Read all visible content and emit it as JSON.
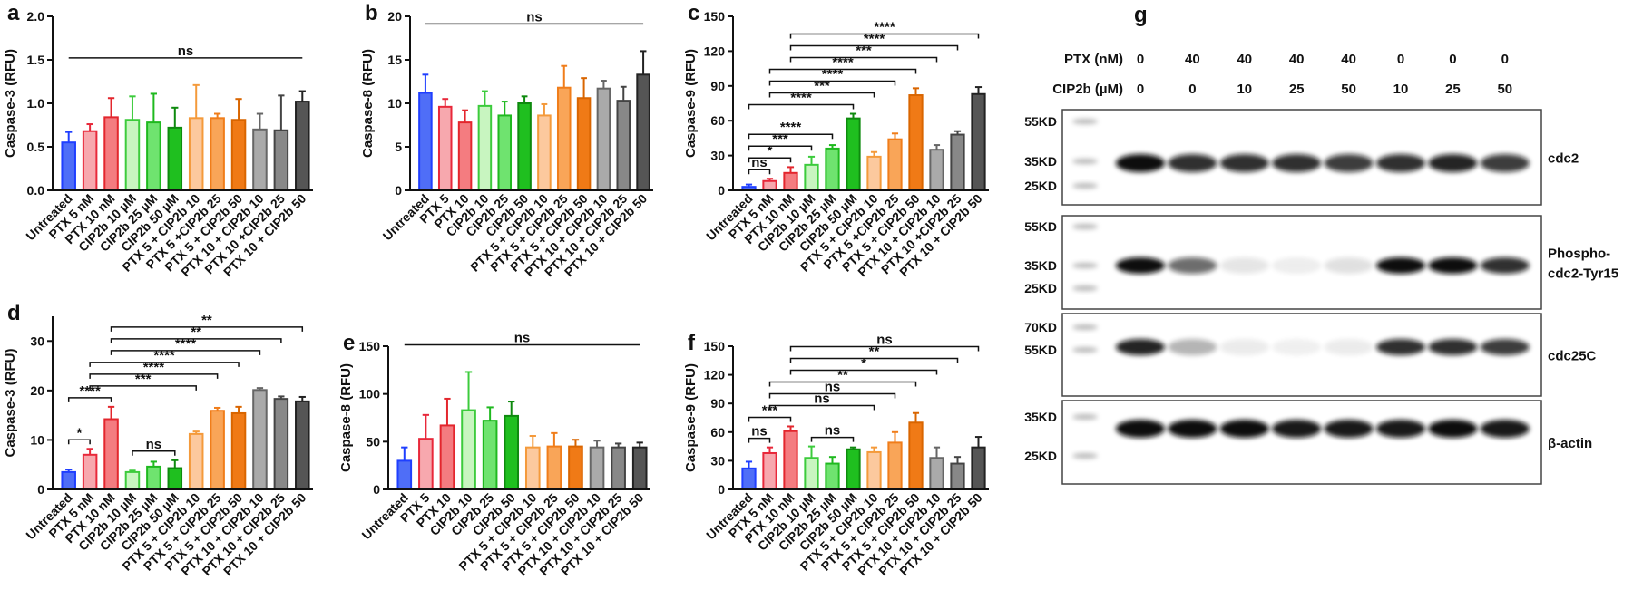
{
  "palette": {
    "fills": [
      "#4f6ef7",
      "#f7a8ae",
      "#f47c80",
      "#c8f5c0",
      "#6fe36f",
      "#1fbf1f",
      "#fcc99e",
      "#f9a558",
      "#f07a16",
      "#aaaaaa",
      "#888888",
      "#555555"
    ],
    "edges": [
      "#1f3fff",
      "#e8283a",
      "#e3262d",
      "#3ccb3c",
      "#1fb91f",
      "#0e8a0e",
      "#f49a3b",
      "#f07d1a",
      "#d96500",
      "#666666",
      "#444444",
      "#222222"
    ]
  },
  "chart_data": [
    {
      "type": "bar",
      "panel": "a",
      "y_label": "Caspase-3 (RFU)",
      "categories": [
        "Untreated",
        "PTX 5 nM",
        "PTX 10 nM",
        "CIP2b 10 µM",
        "CIP2b 25 µM",
        "CIP2b 50 µM",
        "PTX 5 + CIP2b 10",
        "PTX 5 +CIP2b 25",
        "PTX 5 + CIP2b 50",
        "PTX 10 + CIP2b 10",
        "PTX 10 +CIP2b 25",
        "PTX 10 + CIP2b 50"
      ],
      "values": [
        0.55,
        0.68,
        0.84,
        0.81,
        0.78,
        0.72,
        0.83,
        0.83,
        0.81,
        0.7,
        0.69,
        1.02
      ],
      "errors": [
        0.12,
        0.08,
        0.22,
        0.27,
        0.33,
        0.23,
        0.38,
        0.05,
        0.24,
        0.18,
        0.4,
        0.12
      ],
      "ylim": [
        0,
        2
      ],
      "yticks": [
        {
          "value": 0,
          "label": "0.0"
        },
        0.5,
        {
          "value": 1,
          "label": "1.0"
        },
        1.5,
        {
          "value": 2,
          "label": "2.0"
        }
      ],
      "annotations": [
        {
          "label": "ns",
          "pair": [
            0,
            11
          ]
        }
      ]
    },
    {
      "type": "bar",
      "panel": "b",
      "y_label": "Caspase-8 (RFU)",
      "categories": [
        "Untreated",
        "PTX 5",
        "PTX 10",
        "CIP2b 10",
        "CIP2b 25",
        "CIP2b 50",
        "PTX 5 + CIP2b 10",
        "PTX 5 + CIP2b 25",
        "PTX 5 + CIP2b 50",
        "PTX 10 + CIP2b 10",
        "PTX 10 + CIP2b 25",
        "PTX 10 + CIP2b 50"
      ],
      "values": [
        11.2,
        9.6,
        7.8,
        9.7,
        8.6,
        10.0,
        8.6,
        11.8,
        10.6,
        11.7,
        10.3,
        13.3
      ],
      "errors": [
        2.1,
        0.9,
        1.4,
        1.7,
        1.6,
        0.8,
        1.3,
        2.5,
        2.3,
        0.9,
        1.6,
        2.7
      ],
      "ylim": [
        0,
        20
      ],
      "yticks": [
        0,
        5,
        10,
        15,
        20
      ],
      "annotations": [
        {
          "label": "ns",
          "pair": [
            0,
            11
          ]
        }
      ]
    },
    {
      "type": "bar",
      "panel": "c",
      "y_label": "Caspase-9 (RFU)",
      "categories": [
        "Untreated",
        "PTX 5 nM",
        "PTX 10 nM",
        "CIP2b 10 µM",
        "CIP2b 25 µM",
        "CIP2b 50 µM",
        "PTX 5 + CIP2b 10",
        "PTX 5 +CIP2b 25",
        "PTX 5 + CIP2b 50",
        "PTX 10 + CIP2b 10",
        "PTX 10 +CIP2b 25",
        "PTX 10 + CIP2b 50"
      ],
      "values": [
        3,
        8,
        15,
        22,
        36,
        62,
        29,
        44,
        82,
        35,
        48,
        83
      ],
      "errors": [
        2,
        2,
        5,
        7,
        3,
        4,
        4,
        5,
        6,
        4,
        3,
        6
      ],
      "ylim": [
        0,
        150
      ],
      "yticks": [
        0,
        30,
        60,
        90,
        120,
        150
      ],
      "annotations": [
        {
          "label": "ns",
          "pair": [
            0,
            1
          ]
        },
        {
          "label": "*",
          "pair": [
            0,
            2
          ]
        },
        {
          "label": "***",
          "pair": [
            0,
            3
          ]
        },
        {
          "label": "****",
          "pair": [
            0,
            4
          ]
        },
        {
          "label": "****",
          "pair": [
            0,
            5
          ]
        },
        {
          "label": "***",
          "pair": [
            1,
            6
          ]
        },
        {
          "label": "****",
          "pair": [
            1,
            7
          ]
        },
        {
          "label": "****",
          "pair": [
            1,
            8
          ]
        },
        {
          "label": "***",
          "pair": [
            2,
            9
          ]
        },
        {
          "label": "****",
          "pair": [
            2,
            10
          ]
        },
        {
          "label": "****",
          "pair": [
            2,
            11
          ]
        }
      ]
    },
    {
      "type": "bar",
      "panel": "d",
      "y_label": "Caspase-3 (RFU)",
      "categories": [
        "Untreated",
        "PTX 5 nM",
        "PTX 10 nM",
        "CIP2b 10 µM",
        "CIP2b 25 µM",
        "CIP2b 50 µM",
        "PTX 5 + CIP2b 10",
        "PTX 5 + CIP2b 25",
        "PTX 5 + CIP2b 50",
        "PTX 10 + CIP2b 10",
        "PTX 10 + CIP2b 25",
        "PTX 10 + CIP2b 50"
      ],
      "values": [
        3.5,
        7.0,
        14.2,
        3.5,
        4.6,
        4.3,
        11.2,
        15.9,
        15.4,
        20.1,
        18.3,
        17.8
      ],
      "errors": [
        0.5,
        1.2,
        2.5,
        0.3,
        1.0,
        1.6,
        0.5,
        0.6,
        1.3,
        0.4,
        0.5,
        0.9
      ],
      "ylim": [
        0,
        35
      ],
      "yticks": [
        0,
        10,
        20,
        30
      ],
      "annotations": [
        {
          "label": "*",
          "pair": [
            0,
            1
          ]
        },
        {
          "label": "****",
          "pair": [
            0,
            2
          ]
        },
        {
          "label": "ns",
          "pair": [
            3,
            5
          ]
        },
        {
          "label": "***",
          "pair": [
            1,
            6
          ]
        },
        {
          "label": "****",
          "pair": [
            1,
            7
          ]
        },
        {
          "label": "****",
          "pair": [
            1,
            8
          ]
        },
        {
          "label": "****",
          "pair": [
            2,
            9
          ]
        },
        {
          "label": "**",
          "pair": [
            2,
            10
          ]
        },
        {
          "label": "**",
          "pair": [
            2,
            11
          ]
        }
      ]
    },
    {
      "type": "bar",
      "panel": "e",
      "y_label": "Caspase-8 (RFU)",
      "categories": [
        "Untreated",
        "PTX 5",
        "PTX 10",
        "CIP2b 10",
        "CIP2b 25",
        "CIP2b 50",
        "PTX 5 + CIP2b 10",
        "PTX 5 + CIP2b 25",
        "PTX 5 + CIP2b 50",
        "PTX 10 + CIP2b 10",
        "PTX 10 + CIP2b 25",
        "PTX 10 + CIP2b 50"
      ],
      "values": [
        30,
        53,
        67,
        83,
        72,
        77,
        44,
        45,
        45,
        44,
        44,
        44
      ],
      "errors": [
        14,
        25,
        28,
        40,
        14,
        15,
        12,
        14,
        7,
        7,
        4,
        5
      ],
      "ylim": [
        0,
        150
      ],
      "yticks": [
        0,
        50,
        100,
        150
      ],
      "annotations": [
        {
          "label": "ns",
          "pair": [
            0,
            11
          ]
        }
      ]
    },
    {
      "type": "bar",
      "panel": "f",
      "y_label": "Caspase-9 (RFU)",
      "categories": [
        "Untreated",
        "PTX 5 nM",
        "PTX 10 nM",
        "CIP2b 10 µM",
        "CIP2b 25 µM",
        "CIP2b 50 µM",
        "PTX 5 + CIP2b 10",
        "PTX 5 + CIP2b 25",
        "PTX 5 + CIP2b 50",
        "PTX 10 + CIP2b 10",
        "PTX 10 + CIP2b 25",
        "PTX 10 + CIP2b 50"
      ],
      "values": [
        22,
        38,
        61,
        33,
        27,
        42,
        39,
        49,
        70,
        33,
        27,
        44
      ],
      "errors": [
        7,
        6,
        5,
        12,
        7,
        2,
        5,
        11,
        10,
        11,
        7,
        11
      ],
      "ylim": [
        0,
        150
      ],
      "yticks": [
        0,
        30,
        60,
        90,
        120,
        150
      ],
      "annotations": [
        {
          "label": "ns",
          "pair": [
            0,
            1
          ]
        },
        {
          "label": "***",
          "pair": [
            0,
            2
          ]
        },
        {
          "label": "ns",
          "pair": [
            3,
            5
          ]
        },
        {
          "label": "ns",
          "pair": [
            1,
            6
          ]
        },
        {
          "label": "ns",
          "pair": [
            1,
            7
          ]
        },
        {
          "label": "**",
          "pair": [
            1,
            8
          ]
        },
        {
          "label": "*",
          "pair": [
            2,
            9
          ]
        },
        {
          "label": "**",
          "pair": [
            2,
            10
          ]
        },
        {
          "label": "ns",
          "pair": [
            2,
            11
          ]
        }
      ]
    }
  ],
  "blot": {
    "panel": "g",
    "rows": [
      {
        "label": "PTX (nM)",
        "values": [
          0,
          40,
          40,
          40,
          40,
          0,
          0,
          0
        ]
      },
      {
        "label": "CIP2b (µM)",
        "values": [
          0,
          0,
          10,
          25,
          50,
          10,
          25,
          50
        ]
      }
    ],
    "blots": [
      {
        "markers": [
          "55KD",
          "35KD",
          "25KD"
        ],
        "label": [
          "cdc2"
        ]
      },
      {
        "markers": [
          "55KD",
          "35KD",
          "25KD"
        ],
        "label": [
          "Phospho-",
          "cdc2-Tyr15"
        ]
      },
      {
        "markers": [
          "70KD",
          "55KD"
        ],
        "label": [
          "cdc25C"
        ]
      },
      {
        "markers": [
          "35KD",
          "25KD"
        ],
        "label": [
          "β-actin"
        ]
      }
    ]
  }
}
